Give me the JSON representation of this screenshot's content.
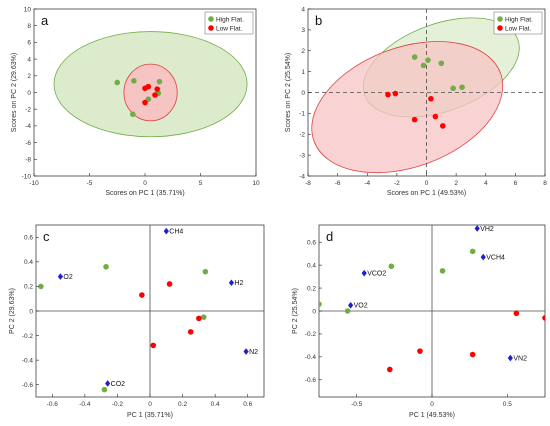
{
  "colors": {
    "green": "#70AD47",
    "red": "#FF0000",
    "blue": "#1F1FCC",
    "green_fill": "#DCEBCB",
    "red_fill": "#F7C4C4",
    "axis": "#262626",
    "zero": "#4D4D4D"
  },
  "chart_data": [
    {
      "panel": "a",
      "type": "scatter",
      "xlabel": "Scores on PC 1 (35.71%)",
      "ylabel": "Scores on PC 2 (29.63%)",
      "xlim": [
        -10,
        10
      ],
      "ylim": [
        -10,
        10
      ],
      "xticks": [
        -10,
        -5,
        0,
        5,
        10
      ],
      "yticks": [
        -10,
        -8,
        -6,
        -4,
        -2,
        0,
        2,
        4,
        6,
        8,
        10
      ],
      "legend": {
        "position": "top-right",
        "entries": [
          "High Flat.",
          "Low Flat."
        ]
      },
      "zero_lines": "none",
      "ellipses": [
        {
          "series": "High Flat.",
          "cx": 0.5,
          "cy": 1.0,
          "rx": 8.7,
          "ry": 6.3,
          "angle": 0
        },
        {
          "series": "Low Flat.",
          "cx": 0.5,
          "cy": 0.0,
          "rx": 2.4,
          "ry": 3.4,
          "angle": 0
        }
      ],
      "series": [
        {
          "name": "High Flat.",
          "x": [
            -2.5,
            -1.0,
            1.3,
            1.2,
            -1.1,
            0.3
          ],
          "y": [
            1.2,
            1.4,
            1.3,
            -0.1,
            -2.6,
            -0.8
          ]
        },
        {
          "name": "Low Flat.",
          "x": [
            0.0,
            0.3,
            0.9,
            1.1,
            0.0
          ],
          "y": [
            0.5,
            0.7,
            -0.3,
            0.4,
            -1.2
          ]
        }
      ]
    },
    {
      "panel": "b",
      "type": "scatter",
      "xlabel": "Scores on PC 1 (49.53%)",
      "ylabel": "Scores on PC 2 (25.54%)",
      "xlim": [
        -8,
        8
      ],
      "ylim": [
        -4,
        4
      ],
      "xticks": [
        -8,
        -6,
        -4,
        -2,
        0,
        2,
        4,
        6,
        8
      ],
      "yticks": [
        -4,
        -3,
        -2,
        -1,
        0,
        1,
        2,
        3,
        4
      ],
      "legend": {
        "position": "top-right",
        "entries": [
          "High Flat.",
          "Low Flat."
        ]
      },
      "zero_lines": "dashed",
      "ellipses": [
        {
          "series": "High Flat.",
          "cx": 1.0,
          "cy": 1.2,
          "rx": 5.5,
          "ry": 0.95,
          "angle": -20
        },
        {
          "series": "Low Flat.",
          "cx": -1.3,
          "cy": -0.7,
          "rx": 6.7,
          "ry": 1.3,
          "angle": -20
        }
      ],
      "series": [
        {
          "name": "High Flat.",
          "x": [
            -0.8,
            -0.2,
            0.1,
            1.0,
            1.8,
            2.4
          ],
          "y": [
            1.7,
            1.3,
            1.55,
            1.4,
            0.2,
            0.25
          ]
        },
        {
          "name": "Low Flat.",
          "x": [
            -2.6,
            -2.1,
            -0.8,
            0.3,
            0.6,
            1.1
          ],
          "y": [
            -0.1,
            -0.05,
            -1.3,
            -0.3,
            -1.15,
            -1.6
          ]
        }
      ]
    },
    {
      "panel": "c",
      "type": "scatter",
      "xlabel": "PC 1 (35.71%)",
      "ylabel": "PC 2 (29.63%)",
      "xlim": [
        -0.7,
        0.7
      ],
      "ylim": [
        -0.7,
        0.7
      ],
      "xticks": [
        -0.6,
        -0.4,
        -0.2,
        0,
        0.2,
        0.4,
        0.6
      ],
      "yticks": [
        -0.6,
        -0.4,
        -0.2,
        0,
        0.2,
        0.4,
        0.6
      ],
      "tick_labels_x": [
        "-0.6",
        "-0.4",
        "-0.2",
        "0",
        "0.2",
        "0.4",
        "0.6"
      ],
      "tick_labels_y": [
        "-0.6",
        "-0.4",
        "-0.2",
        "0",
        "0.2",
        "0.4",
        "0.6"
      ],
      "zero_lines": "solid",
      "series": [
        {
          "name": "High Flat.",
          "x": [
            -0.67,
            -0.27,
            0.34,
            0.33,
            -0.28
          ],
          "y": [
            0.2,
            0.36,
            0.32,
            -0.05,
            -0.64
          ]
        },
        {
          "name": "Low Flat.",
          "x": [
            -0.05,
            0.12,
            0.3,
            0.25,
            0.02
          ],
          "y": [
            0.13,
            0.22,
            -0.06,
            -0.17,
            -0.28
          ]
        }
      ],
      "variables": [
        {
          "label": "CH4",
          "x": 0.1,
          "y": 0.65
        },
        {
          "label": "O2",
          "x": -0.55,
          "y": 0.28
        },
        {
          "label": "H2",
          "x": 0.5,
          "y": 0.23
        },
        {
          "label": "N2",
          "x": 0.59,
          "y": -0.33
        },
        {
          "label": "CO2",
          "x": -0.26,
          "y": -0.59
        }
      ]
    },
    {
      "panel": "d",
      "type": "scatter",
      "xlabel": "PC 1 (49.53%)",
      "ylabel": "PC 2 (25.54%)",
      "xlim": [
        -0.75,
        0.75
      ],
      "ylim": [
        -0.75,
        0.75
      ],
      "xticks": [
        -0.5,
        0,
        0.5
      ],
      "yticks": [
        -0.6,
        -0.4,
        -0.2,
        0,
        0.2,
        0.4,
        0.6
      ],
      "tick_labels_x": [
        "-0.5",
        "0",
        "0.5"
      ],
      "tick_labels_y": [
        "-0.6",
        "-0.4",
        "-0.2",
        "0",
        "0.2",
        "0.4",
        "0.6"
      ],
      "zero_lines": "solid",
      "series": [
        {
          "name": "High Flat.",
          "x": [
            -0.75,
            -0.56,
            -0.27,
            0.07,
            0.27
          ],
          "y": [
            0.06,
            0.0,
            0.39,
            0.35,
            0.52
          ]
        },
        {
          "name": "Low Flat.",
          "x": [
            0.75,
            0.56,
            0.27,
            -0.08,
            -0.28
          ],
          "y": [
            -0.06,
            -0.02,
            -0.38,
            -0.35,
            -0.51
          ]
        }
      ],
      "variables": [
        {
          "label": "VH2",
          "x": 0.3,
          "y": 0.72
        },
        {
          "label": "VCH4",
          "x": 0.34,
          "y": 0.47
        },
        {
          "label": "VCO2",
          "x": -0.45,
          "y": 0.33
        },
        {
          "label": "VO2",
          "x": -0.54,
          "y": 0.05
        },
        {
          "label": "VN2",
          "x": 0.52,
          "y": -0.41
        }
      ]
    }
  ]
}
